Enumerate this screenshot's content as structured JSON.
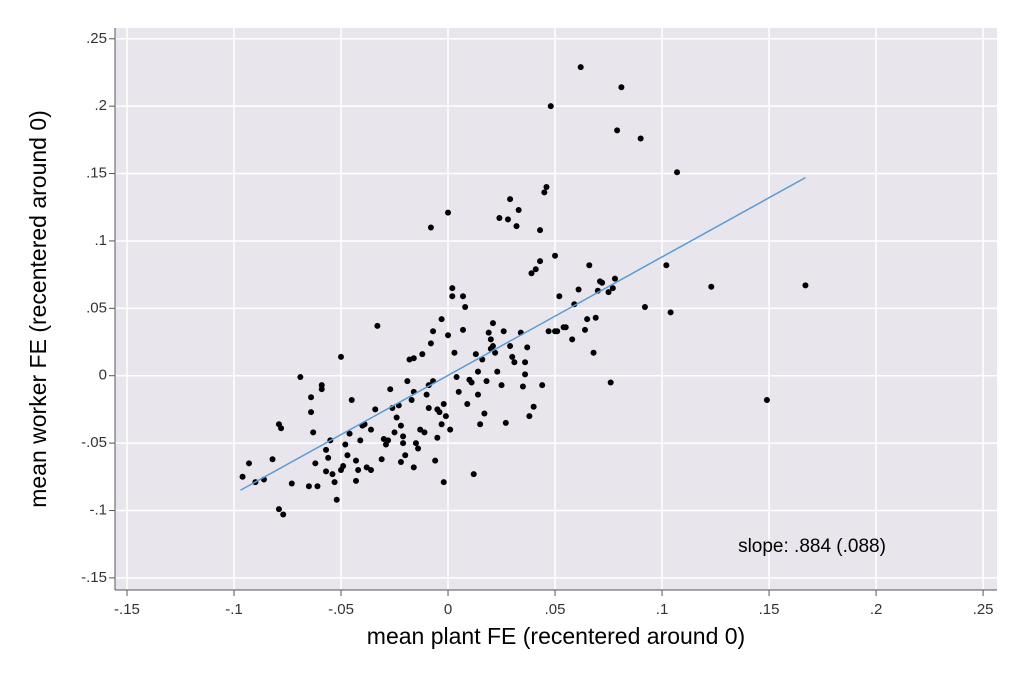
{
  "chart_data": {
    "type": "scatter",
    "x_label": "mean plant FE (recentered around 0)",
    "y_label": "mean worker FE (recentered around 0)",
    "annotation": "slope: .884 (.088)",
    "xlim": [
      -0.1556,
      0.2565
    ],
    "ylim": [
      -0.159,
      0.258
    ],
    "xticks": [
      {
        "value": -0.15,
        "label": "-.15"
      },
      {
        "value": -0.1,
        "label": "-.1"
      },
      {
        "value": -0.05,
        "label": "-.05"
      },
      0,
      {
        "value": 0.05,
        "label": ".05"
      },
      {
        "value": 0.1,
        "label": ".1"
      },
      {
        "value": 0.15,
        "label": ".15"
      },
      {
        "value": 0.2,
        "label": ".2"
      },
      {
        "value": 0.25,
        "label": ".25"
      }
    ],
    "yticks": [
      {
        "value": -0.15,
        "label": "-.15"
      },
      {
        "value": -0.1,
        "label": "-.1"
      },
      {
        "value": -0.05,
        "label": "-.05"
      },
      0,
      {
        "value": 0.05,
        "label": ".05"
      },
      {
        "value": 0.1,
        "label": ".1"
      },
      {
        "value": 0.15,
        "label": ".15"
      },
      {
        "value": 0.2,
        "label": ".2"
      },
      {
        "value": 0.25,
        "label": ".25"
      }
    ],
    "grid": true,
    "series": [
      {
        "color": "#000000",
        "x": [
          -0.096,
          -0.093,
          -0.09,
          -0.086,
          -0.082,
          -0.079,
          -0.077,
          -0.079,
          -0.078,
          -0.073,
          -0.069,
          -0.065,
          -0.064,
          -0.064,
          -0.063,
          -0.062,
          -0.061,
          -0.059,
          -0.059,
          -0.057,
          -0.057,
          -0.056,
          -0.055,
          -0.054,
          -0.053,
          -0.052,
          -0.05,
          -0.05,
          -0.049,
          -0.048,
          -0.047,
          -0.046,
          -0.045,
          -0.043,
          -0.043,
          -0.042,
          -0.041,
          -0.04,
          -0.039,
          -0.038,
          -0.036,
          -0.036,
          -0.034,
          -0.033,
          -0.031,
          -0.03,
          -0.029,
          -0.028,
          -0.027,
          -0.026,
          -0.025,
          -0.024,
          -0.023,
          -0.022,
          -0.022,
          -0.021,
          -0.021,
          -0.02,
          -0.019,
          -0.018,
          -0.017,
          -0.016,
          -0.016,
          -0.016,
          -0.015,
          -0.014,
          -0.013,
          -0.012,
          -0.011,
          -0.01,
          -0.009,
          -0.009,
          -0.008,
          -0.008,
          -0.007,
          -0.007,
          -0.006,
          -0.005,
          -0.005,
          -0.004,
          -0.003,
          -0.003,
          -0.002,
          -0.002,
          -0.001,
          0.0,
          0,
          0.001,
          0.002,
          0.002,
          0.003,
          0.004,
          0.005,
          0.007,
          0.007,
          0.008,
          0.009,
          0.01,
          0.011,
          0.012,
          0.013,
          0.014,
          0.014,
          0.015,
          0.016,
          0.017,
          0.018,
          0.019,
          0.02,
          0.02,
          0.021,
          0.021,
          0.022,
          0.023,
          0.024,
          0.025,
          0.026,
          0.027,
          0.028,
          0.029,
          0.029,
          0.03,
          0.031,
          0.032,
          0.033,
          0.034,
          0.035,
          0.036,
          0.036,
          0.037,
          0.038,
          0.039,
          0.04,
          0.041,
          0.043,
          0.043,
          0.044,
          0.045,
          0.046,
          0.047,
          0.048,
          0.05,
          0.05,
          0.051,
          0.052,
          0.054,
          0.055,
          0.058,
          0.059,
          0.061,
          0.062,
          0.064,
          0.065,
          0.066,
          0.068,
          0.069,
          0.07,
          0.071,
          0.072,
          0.075,
          0.076,
          0.077,
          0.078,
          0.079,
          0.081,
          0.09,
          0.092,
          0.102,
          0.104,
          0.107,
          0.123,
          0.149,
          0.167
        ],
        "y": [
          -0.075,
          -0.065,
          -0.079,
          -0.077,
          -0.062,
          -0.099,
          -0.103,
          -0.036,
          -0.039,
          -0.08,
          -0.001,
          -0.082,
          -0.016,
          -0.027,
          -0.042,
          -0.065,
          -0.082,
          -0.007,
          -0.01,
          -0.055,
          -0.071,
          -0.061,
          -0.048,
          -0.073,
          -0.079,
          -0.092,
          -0.07,
          0.014,
          -0.067,
          -0.051,
          -0.059,
          -0.043,
          -0.018,
          -0.078,
          -0.063,
          -0.07,
          -0.048,
          -0.037,
          -0.036,
          -0.068,
          -0.04,
          -0.07,
          -0.025,
          0.037,
          -0.062,
          -0.047,
          -0.051,
          -0.048,
          -0.01,
          -0.024,
          -0.042,
          -0.031,
          -0.022,
          -0.064,
          -0.037,
          -0.05,
          -0.045,
          -0.059,
          -0.004,
          0.012,
          -0.018,
          0.013,
          -0.012,
          -0.068,
          -0.05,
          -0.054,
          -0.04,
          0.016,
          -0.042,
          -0.014,
          -0.024,
          -0.007,
          0.024,
          0.11,
          -0.004,
          0.033,
          -0.063,
          -0.025,
          -0.046,
          -0.027,
          -0.036,
          0.042,
          -0.021,
          -0.079,
          -0.03,
          0.03,
          0.121,
          -0.04,
          0.065,
          0.059,
          0.017,
          -0.001,
          -0.012,
          0.034,
          0.059,
          0.051,
          -0.021,
          -0.003,
          -0.005,
          -0.073,
          0.016,
          0.003,
          -0.014,
          -0.036,
          0.012,
          -0.028,
          -0.004,
          0.032,
          0.02,
          0.027,
          0.022,
          0.039,
          0.017,
          0.003,
          0.117,
          -0.007,
          0.033,
          -0.035,
          0.116,
          0.131,
          0.022,
          0.014,
          0.01,
          0.111,
          0.123,
          0.032,
          -0.008,
          0.001,
          0.01,
          0.021,
          -0.03,
          0.076,
          -0.023,
          0.079,
          0.108,
          0.085,
          -0.007,
          0.136,
          0.14,
          0.033,
          0.2,
          0.033,
          0.089,
          0.033,
          0.059,
          0.036,
          0.036,
          0.027,
          0.053,
          0.064,
          0.229,
          0.034,
          0.042,
          0.082,
          0.017,
          0.043,
          0.063,
          0.07,
          0.069,
          0.062,
          -0.005,
          0.065,
          0.072,
          0.182,
          0.214,
          0.176,
          0.051,
          0.082,
          0.047,
          0.151,
          0.066,
          -0.018,
          0.067
        ]
      }
    ],
    "fit_line": {
      "color": "#5b9bd5",
      "x": [
        -0.097,
        0.167
      ],
      "y": [
        -0.085,
        0.147
      ]
    }
  }
}
